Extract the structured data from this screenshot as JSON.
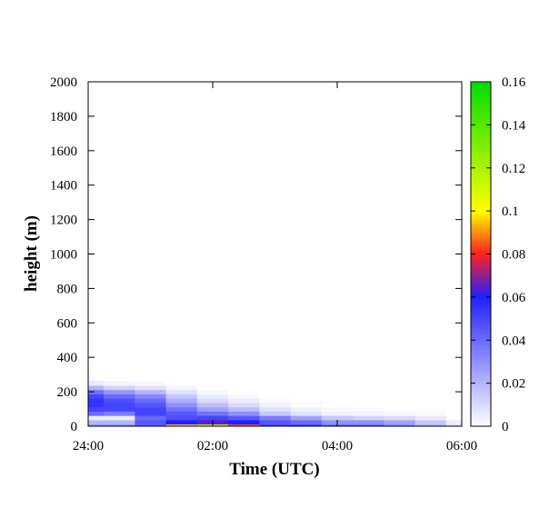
{
  "chart_data": {
    "type": "heatmap",
    "title": "",
    "xlabel": "Time (UTC)",
    "ylabel": "height (m)",
    "x_unit": "hours UTC",
    "xlim": [
      "24:00",
      "06:00"
    ],
    "x_ticks": [
      "24:00",
      "02:00",
      "04:00",
      "06:00"
    ],
    "ylim": [
      0,
      2000
    ],
    "y_ticks": [
      0,
      200,
      400,
      600,
      800,
      1000,
      1200,
      1400,
      1600,
      1800,
      2000
    ],
    "colorbar": {
      "range": [
        0,
        0.16
      ],
      "ticks": [
        0,
        0.02,
        0.04,
        0.06,
        0.08,
        0.1,
        0.12,
        0.14,
        0.16
      ],
      "tick_labels": [
        "0",
        "0.02",
        "0.04",
        "0.06",
        "0.08",
        "0.1",
        "0.12",
        "0.14",
        "0.16"
      ],
      "stops": [
        {
          "value": 0.0,
          "color": "#ffffff"
        },
        {
          "value": 0.06,
          "color": "#2020ff"
        },
        {
          "value": 0.08,
          "color": "#ff2020"
        },
        {
          "value": 0.1,
          "color": "#ffff00"
        },
        {
          "value": 0.16,
          "color": "#00dd00"
        }
      ]
    },
    "x": [
      "24:00",
      "00:30",
      "01:00",
      "01:30",
      "02:00",
      "02:30",
      "03:00",
      "03:30",
      "04:00",
      "04:30",
      "05:00",
      "05:30",
      "06:00"
    ],
    "y": [
      0,
      25,
      50,
      75,
      100,
      125,
      150,
      175,
      200,
      225,
      250
    ],
    "z": [
      [
        0.03,
        0.03,
        0.045,
        0.095,
        0.11,
        0.085,
        0.05,
        0.05,
        0.04,
        0.04,
        0.03,
        0.02,
        0.01
      ],
      [
        0.02,
        0.02,
        0.045,
        0.06,
        0.065,
        0.06,
        0.045,
        0.04,
        0.03,
        0.03,
        0.025,
        0.015,
        0.005
      ],
      [
        0.005,
        0.005,
        0.04,
        0.048,
        0.05,
        0.045,
        0.035,
        0.025,
        0.015,
        0.012,
        0.01,
        0.006,
        0.0
      ],
      [
        0.04,
        0.035,
        0.05,
        0.045,
        0.038,
        0.03,
        0.015,
        0.008,
        0.004,
        0.003,
        0.002,
        0.001,
        0.0
      ],
      [
        0.05,
        0.05,
        0.05,
        0.038,
        0.025,
        0.018,
        0.008,
        0.004,
        0.002,
        0.001,
        0.0,
        0.0,
        0.0
      ],
      [
        0.055,
        0.05,
        0.046,
        0.03,
        0.018,
        0.01,
        0.004,
        0.001,
        0.0,
        0.0,
        0.0,
        0.0,
        0.0
      ],
      [
        0.055,
        0.048,
        0.04,
        0.022,
        0.01,
        0.005,
        0.001,
        0.0,
        0.0,
        0.0,
        0.0,
        0.0,
        0.0
      ],
      [
        0.05,
        0.04,
        0.032,
        0.015,
        0.005,
        0.002,
        0.0,
        0.0,
        0.0,
        0.0,
        0.0,
        0.0,
        0.0
      ],
      [
        0.038,
        0.028,
        0.02,
        0.008,
        0.002,
        0.0,
        0.0,
        0.0,
        0.0,
        0.0,
        0.0,
        0.0,
        0.0
      ],
      [
        0.02,
        0.012,
        0.008,
        0.003,
        0.0,
        0.0,
        0.0,
        0.0,
        0.0,
        0.0,
        0.0,
        0.0,
        0.0
      ],
      [
        0.006,
        0.003,
        0.002,
        0.0,
        0.0,
        0.0,
        0.0,
        0.0,
        0.0,
        0.0,
        0.0,
        0.0,
        0.0
      ]
    ],
    "grid": false,
    "legend": "colorbar-right"
  }
}
